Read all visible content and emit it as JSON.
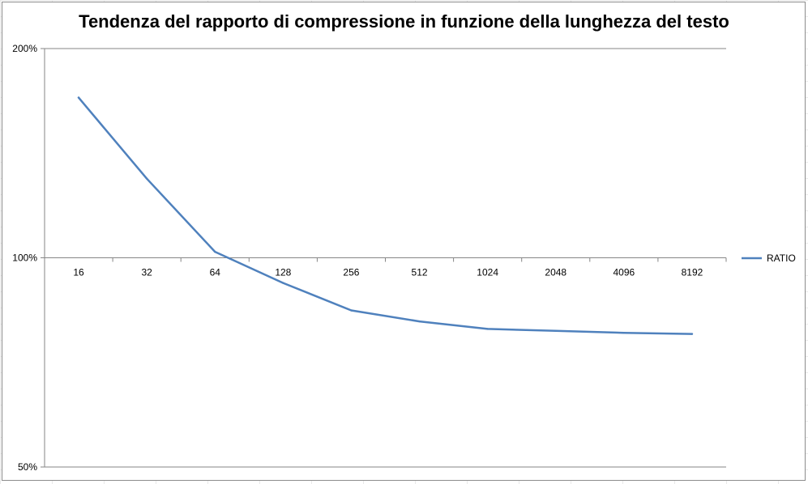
{
  "chart_data": {
    "type": "line",
    "title": "Tendenza del rapporto di compressione in funzione della lunghezza del testo",
    "categories": [
      "16",
      "32",
      "64",
      "128",
      "256",
      "512",
      "1024",
      "2048",
      "4096",
      "8192"
    ],
    "series": [
      {
        "name": "RATIO",
        "values": [
          1.7,
          1.3,
          1.02,
          0.92,
          0.84,
          0.81,
          0.79,
          0.785,
          0.78,
          0.777
        ],
        "color": "#4f81bd"
      }
    ],
    "yscale": "log",
    "ylim": [
      0.5,
      2.0
    ],
    "yticks": [
      {
        "value": 0.5,
        "label": "50%"
      },
      {
        "value": 1.0,
        "label": "100%"
      },
      {
        "value": 2.0,
        "label": "200%"
      }
    ],
    "x_axis_crosses_at": 1.0,
    "grid": {
      "horizontal_major": true
    },
    "legend": {
      "position": "right",
      "entries": [
        "RATIO"
      ]
    }
  }
}
